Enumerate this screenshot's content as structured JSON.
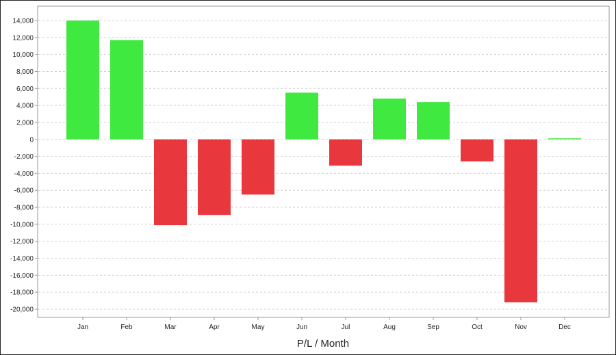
{
  "chart_data": {
    "type": "bar",
    "title": "",
    "xlabel": "P/L / Month",
    "ylabel": "",
    "categories": [
      "Jan",
      "Feb",
      "Mar",
      "Apr",
      "May",
      "Jun",
      "Jul",
      "Aug",
      "Sep",
      "Oct",
      "Nov",
      "Dec"
    ],
    "values": [
      14000,
      11700,
      -10100,
      -8900,
      -6500,
      5500,
      -3100,
      4800,
      4400,
      -2600,
      -19200,
      100
    ],
    "ylim": [
      -20000,
      14000
    ],
    "yticks": [
      14000,
      12000,
      10000,
      8000,
      6000,
      4000,
      2000,
      0,
      -2000,
      -4000,
      -6000,
      -8000,
      -10000,
      -12000,
      -14000,
      -16000,
      -18000,
      -20000
    ],
    "ytick_labels": [
      "14,000",
      "12,000",
      "10,000",
      "8,000",
      "6,000",
      "4,000",
      "2,000",
      "0",
      "-2,000",
      "-4,000",
      "-6,000",
      "-8,000",
      "-10,000",
      "-12,000",
      "-14,000",
      "-16,000",
      "-18,000",
      "-20,000"
    ],
    "grid": true,
    "legend": "none",
    "colors": {
      "positive": "#3fe93f",
      "negative": "#e8373d"
    }
  }
}
